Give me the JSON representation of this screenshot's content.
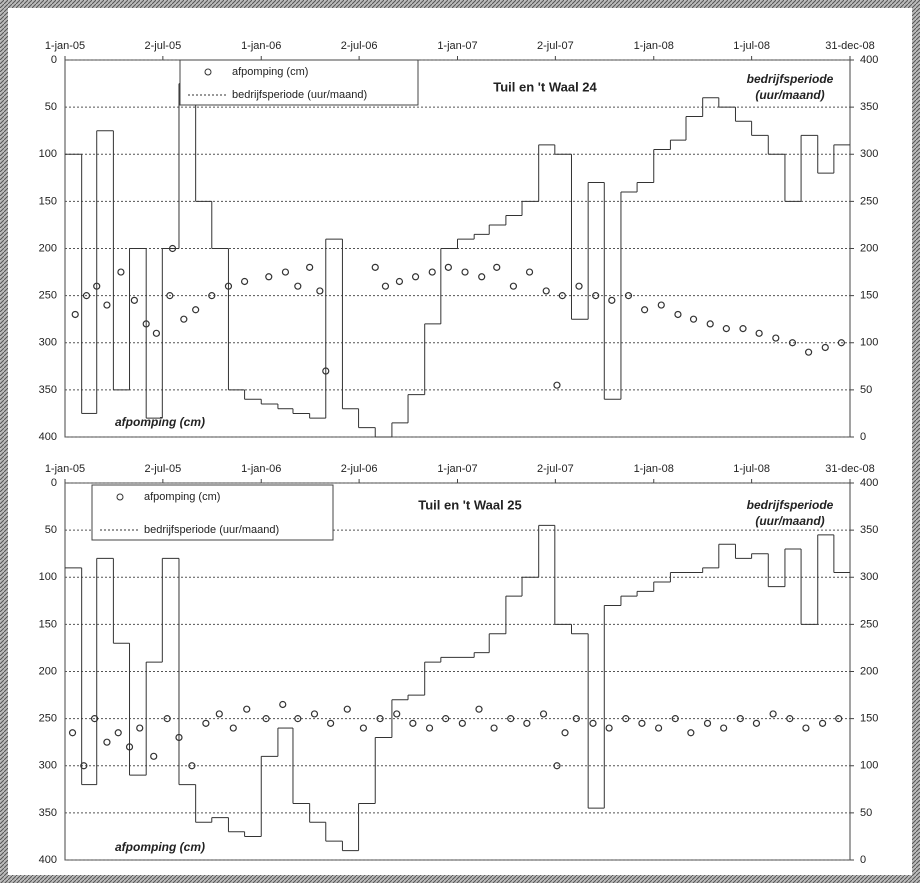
{
  "chart_data": [
    {
      "type": "combo",
      "title": "Tuil en 't Waal 24",
      "y_label": "afpomping (cm)",
      "y2_label": [
        "bedrijfsperiode",
        "(uur/maand)"
      ],
      "xlim": [
        "2005-01-01",
        "2008-12-31"
      ],
      "xticks": [
        {
          "value": "2005-01-01",
          "label": "1-jan-05"
        },
        {
          "value": "2005-07-02",
          "label": "2-jul-05"
        },
        {
          "value": "2006-01-01",
          "label": "1-jan-06"
        },
        {
          "value": "2006-07-02",
          "label": "2-jul-06"
        },
        {
          "value": "2007-01-01",
          "label": "1-jan-07"
        },
        {
          "value": "2007-07-02",
          "label": "2-jul-07"
        },
        {
          "value": "2008-01-01",
          "label": "1-jan-08"
        },
        {
          "value": "2008-07-01",
          "label": "1-jul-08"
        },
        {
          "value": "2008-12-31",
          "label": "31-dec-08"
        }
      ],
      "ylim": [
        0,
        400
      ],
      "y_reversed": true,
      "yticks": [
        0,
        50,
        100,
        150,
        200,
        250,
        300,
        350,
        400
      ],
      "y2lim": [
        0,
        400
      ],
      "y2ticks": [
        0,
        50,
        100,
        150,
        200,
        250,
        300,
        350,
        400
      ],
      "grid": true,
      "series": [
        {
          "name": "afpomping (cm)",
          "type": "scatter",
          "color": "#333333",
          "x": [
            "2005-01-20",
            "2005-02-10",
            "2005-03-01",
            "2005-03-20",
            "2005-04-15",
            "2005-05-10",
            "2005-06-01",
            "2005-06-20",
            "2005-07-15",
            "2005-07-20",
            "2005-08-10",
            "2005-09-01",
            "2005-10-01",
            "2005-11-01",
            "2005-12-01",
            "2006-01-15",
            "2006-02-15",
            "2006-03-10",
            "2006-04-01",
            "2006-04-20",
            "2006-05-01",
            "2006-08-01",
            "2006-08-20",
            "2006-09-15",
            "2006-10-15",
            "2006-11-15",
            "2006-12-15",
            "2007-01-15",
            "2007-02-15",
            "2007-03-15",
            "2007-04-15",
            "2007-05-15",
            "2007-06-15",
            "2007-07-05",
            "2007-07-15",
            "2007-08-15",
            "2007-09-15",
            "2007-10-15",
            "2007-11-15",
            "2007-12-15",
            "2008-01-15",
            "2008-02-15",
            "2008-03-15",
            "2008-04-15",
            "2008-05-15",
            "2008-06-15",
            "2008-07-15",
            "2008-08-15",
            "2008-09-15",
            "2008-10-15",
            "2008-11-15",
            "2008-12-15"
          ],
          "values": [
            270,
            250,
            240,
            260,
            225,
            255,
            280,
            290,
            250,
            200,
            275,
            265,
            250,
            240,
            235,
            230,
            225,
            240,
            220,
            245,
            330,
            220,
            240,
            235,
            230,
            225,
            220,
            225,
            230,
            220,
            240,
            225,
            245,
            345,
            250,
            240,
            250,
            255,
            250,
            265,
            260,
            270,
            275,
            280,
            285,
            285,
            290,
            295,
            300,
            310,
            305,
            300
          ]
        },
        {
          "name": "bedrijfsperiode (uur/maand)",
          "type": "step",
          "axis": "y2",
          "color": "#333333",
          "x": [
            "2005-01",
            "2005-02",
            "2005-03",
            "2005-04",
            "2005-05",
            "2005-06",
            "2005-07",
            "2005-08",
            "2005-09",
            "2005-10",
            "2005-11",
            "2005-12",
            "2006-01",
            "2006-02",
            "2006-03",
            "2006-04",
            "2006-05",
            "2006-06",
            "2006-07",
            "2006-08",
            "2006-09",
            "2006-10",
            "2006-11",
            "2006-12",
            "2007-01",
            "2007-02",
            "2007-03",
            "2007-04",
            "2007-05",
            "2007-06",
            "2007-07",
            "2007-08",
            "2007-09",
            "2007-10",
            "2007-11",
            "2007-12",
            "2008-01",
            "2008-02",
            "2008-03",
            "2008-04",
            "2008-05",
            "2008-06",
            "2008-07",
            "2008-08",
            "2008-09",
            "2008-10",
            "2008-11",
            "2008-12"
          ],
          "values": [
            300,
            25,
            325,
            50,
            200,
            20,
            200,
            375,
            250,
            200,
            50,
            40,
            35,
            30,
            25,
            20,
            210,
            30,
            10,
            0,
            15,
            45,
            120,
            200,
            210,
            215,
            225,
            235,
            250,
            310,
            300,
            125,
            270,
            40,
            260,
            270,
            305,
            315,
            340,
            360,
            350,
            335,
            320,
            300,
            250,
            320,
            280,
            310
          ]
        }
      ]
    },
    {
      "type": "combo",
      "title": "Tuil en 't Waal 25",
      "y_label": "afpomping (cm)",
      "y2_label": [
        "bedrijfsperiode",
        "(uur/maand)"
      ],
      "xlim": [
        "2005-01-01",
        "2008-12-31"
      ],
      "xticks": [
        {
          "value": "2005-01-01",
          "label": "1-jan-05"
        },
        {
          "value": "2005-07-02",
          "label": "2-jul-05"
        },
        {
          "value": "2006-01-01",
          "label": "1-jan-06"
        },
        {
          "value": "2006-07-02",
          "label": "2-jul-06"
        },
        {
          "value": "2007-01-01",
          "label": "1-jan-07"
        },
        {
          "value": "2007-07-02",
          "label": "2-jul-07"
        },
        {
          "value": "2008-01-01",
          "label": "1-jan-08"
        },
        {
          "value": "2008-07-01",
          "label": "1-jul-08"
        },
        {
          "value": "2008-12-31",
          "label": "31-dec-08"
        }
      ],
      "ylim": [
        0,
        400
      ],
      "y_reversed": true,
      "yticks": [
        0,
        50,
        100,
        150,
        200,
        250,
        300,
        350,
        400
      ],
      "y2lim": [
        0,
        400
      ],
      "y2ticks": [
        0,
        50,
        100,
        150,
        200,
        250,
        300,
        350,
        400
      ],
      "grid": true,
      "series": [
        {
          "name": "afpomping (cm)",
          "type": "scatter",
          "color": "#333333",
          "x": [
            "2005-01-15",
            "2005-02-05",
            "2005-02-25",
            "2005-03-20",
            "2005-04-10",
            "2005-05-01",
            "2005-05-20",
            "2005-06-15",
            "2005-07-10",
            "2005-08-01",
            "2005-08-25",
            "2005-09-20",
            "2005-10-15",
            "2005-11-10",
            "2005-12-05",
            "2006-01-10",
            "2006-02-10",
            "2006-03-10",
            "2006-04-10",
            "2006-05-10",
            "2006-06-10",
            "2006-07-10",
            "2006-08-10",
            "2006-09-10",
            "2006-10-10",
            "2006-11-10",
            "2006-12-10",
            "2007-01-10",
            "2007-02-10",
            "2007-03-10",
            "2007-04-10",
            "2007-05-10",
            "2007-06-10",
            "2007-07-05",
            "2007-07-20",
            "2007-08-10",
            "2007-09-10",
            "2007-10-10",
            "2007-11-10",
            "2007-12-10",
            "2008-01-10",
            "2008-02-10",
            "2008-03-10",
            "2008-04-10",
            "2008-05-10",
            "2008-06-10",
            "2008-07-10",
            "2008-08-10",
            "2008-09-10",
            "2008-10-10",
            "2008-11-10",
            "2008-12-10"
          ],
          "values": [
            265,
            300,
            250,
            275,
            265,
            280,
            260,
            290,
            250,
            270,
            300,
            255,
            245,
            260,
            240,
            250,
            235,
            250,
            245,
            255,
            240,
            260,
            250,
            245,
            255,
            260,
            250,
            255,
            240,
            260,
            250,
            255,
            245,
            300,
            265,
            250,
            255,
            260,
            250,
            255,
            260,
            250,
            265,
            255,
            260,
            250,
            255,
            245,
            250,
            260,
            255,
            250
          ]
        },
        {
          "name": "bedrijfsperiode (uur/maand)",
          "type": "step",
          "axis": "y2",
          "color": "#333333",
          "x": [
            "2005-01",
            "2005-02",
            "2005-03",
            "2005-04",
            "2005-05",
            "2005-06",
            "2005-07",
            "2005-08",
            "2005-09",
            "2005-10",
            "2005-11",
            "2005-12",
            "2006-01",
            "2006-02",
            "2006-03",
            "2006-04",
            "2006-05",
            "2006-06",
            "2006-07",
            "2006-08",
            "2006-09",
            "2006-10",
            "2006-11",
            "2006-12",
            "2007-01",
            "2007-02",
            "2007-03",
            "2007-04",
            "2007-05",
            "2007-06",
            "2007-07",
            "2007-08",
            "2007-09",
            "2007-10",
            "2007-11",
            "2007-12",
            "2008-01",
            "2008-02",
            "2008-03",
            "2008-04",
            "2008-05",
            "2008-06",
            "2008-07",
            "2008-08",
            "2008-09",
            "2008-10",
            "2008-11",
            "2008-12"
          ],
          "values": [
            310,
            80,
            320,
            230,
            90,
            210,
            320,
            80,
            40,
            45,
            30,
            25,
            110,
            140,
            60,
            40,
            20,
            10,
            60,
            130,
            170,
            175,
            210,
            215,
            215,
            220,
            240,
            280,
            300,
            355,
            250,
            240,
            55,
            270,
            280,
            285,
            295,
            305,
            305,
            310,
            335,
            320,
            325,
            290,
            330,
            250,
            345,
            305
          ]
        }
      ]
    }
  ]
}
